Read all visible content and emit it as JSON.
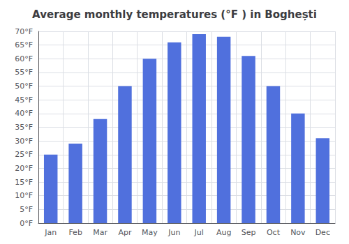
{
  "chart_data": {
    "type": "bar",
    "title": "Average monthly temperatures (°F ) in Boghești",
    "categories": [
      "Jan",
      "Feb",
      "Mar",
      "Apr",
      "May",
      "Jun",
      "Jul",
      "Aug",
      "Sep",
      "Oct",
      "Nov",
      "Dec"
    ],
    "values": [
      25,
      29,
      38,
      50,
      60,
      66,
      69,
      68,
      61,
      50,
      40,
      31
    ],
    "ylim": [
      0,
      70
    ],
    "yticks": [
      {
        "value": 0,
        "label": "0°F"
      },
      {
        "value": 5,
        "label": "5°F"
      },
      {
        "value": 10,
        "label": "10°F"
      },
      {
        "value": 15,
        "label": "15°F"
      },
      {
        "value": 20,
        "label": "20°F"
      },
      {
        "value": 25,
        "label": "25°F"
      },
      {
        "value": 30,
        "label": "30°F"
      },
      {
        "value": 35,
        "label": "35°F"
      },
      {
        "value": 40,
        "label": "40°F"
      },
      {
        "value": 45,
        "label": "45°F"
      },
      {
        "value": 50,
        "label": "50°F"
      },
      {
        "value": 55,
        "label": "55°F"
      },
      {
        "value": 60,
        "label": "60°F"
      },
      {
        "value": 65,
        "label": "65°F"
      },
      {
        "value": 70,
        "label": "70°F"
      }
    ],
    "grid": true
  }
}
